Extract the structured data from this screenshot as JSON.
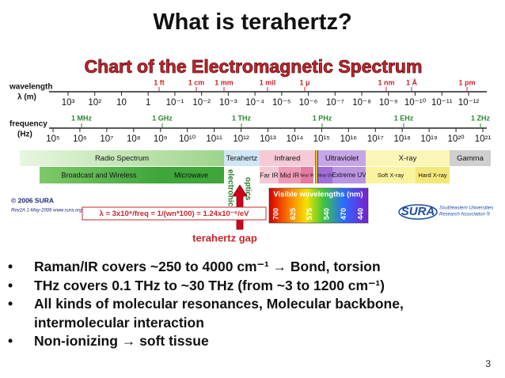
{
  "title": "What is terahertz?",
  "chart": {
    "title": "Chart of the Electromagnetic Spectrum",
    "wavelength_label": "wavelength",
    "wavelength_unit": "λ (m)",
    "wavelength_named": [
      "1 ft",
      "1 cm",
      "1 mm",
      "1 mil",
      "1 μ",
      "1 nm",
      "1 Å",
      "1 pm"
    ],
    "wavelength_ticks": [
      "10³",
      "10²",
      "10",
      "1",
      "10⁻¹",
      "10⁻²",
      "10⁻³",
      "10⁻⁴",
      "10⁻⁵",
      "10⁻⁶",
      "10⁻⁷",
      "10⁻⁸",
      "10⁻⁹",
      "10⁻¹⁰",
      "10⁻¹¹",
      "10⁻¹²"
    ],
    "frequency_label": "frequency",
    "frequency_unit": "(Hz)",
    "frequency_named": [
      "1 MHz",
      "1 GHz",
      "1 THz",
      "1 PHz",
      "1 EHz",
      "1 ZHz"
    ],
    "frequency_ticks": [
      "10⁵",
      "10⁶",
      "10⁷",
      "10⁸",
      "10⁹",
      "10¹⁰",
      "10¹¹",
      "10¹²",
      "10¹³",
      "10¹⁴",
      "10¹⁵",
      "10¹⁶",
      "10¹⁷",
      "10¹⁸",
      "10¹⁹",
      "10²⁰",
      "10²¹"
    ],
    "bands": [
      "Radio Spectrum",
      "Terahertz",
      "Infrared",
      "Ultraviolet",
      "X-ray",
      "Gamma"
    ],
    "subbands": [
      "Broadcast and Wireless",
      "Microwave",
      "Far IR",
      "Mid IR",
      "Near IR",
      "Near UV",
      "Extreme UV",
      "Soft X-ray",
      "Hard X-ray"
    ],
    "electronics": "electronics",
    "optics": "optics",
    "visible_label": "Visible wavelengths (nm)",
    "visible_values": [
      "700",
      "625",
      "575",
      "540",
      "470",
      "440"
    ],
    "copyright": "© 2006 SURA",
    "revision": "Rev2A 1-May-2006   www.sura.org",
    "formula": "λ = 3x10⁸/freq = 1/(wn*100) = 1.24x10⁻⁶/eV",
    "gap_label": "terahertz gap",
    "logo": "SURA",
    "logo_lines": [
      "Southeastern Universities",
      "Research Association ®"
    ]
  },
  "bullets": [
    "Raman/IR covers ~250 to 4000 cm⁻¹ → Bond, torsion",
    "THz covers 0.1 THz to ~30 THz (from ~3 to 1200 cm⁻¹)",
    "All kinds of molecular resonances, Molecular backbone, intermolecular interaction",
    "Non-ionizing → soft tissue"
  ],
  "page_number": "3"
}
